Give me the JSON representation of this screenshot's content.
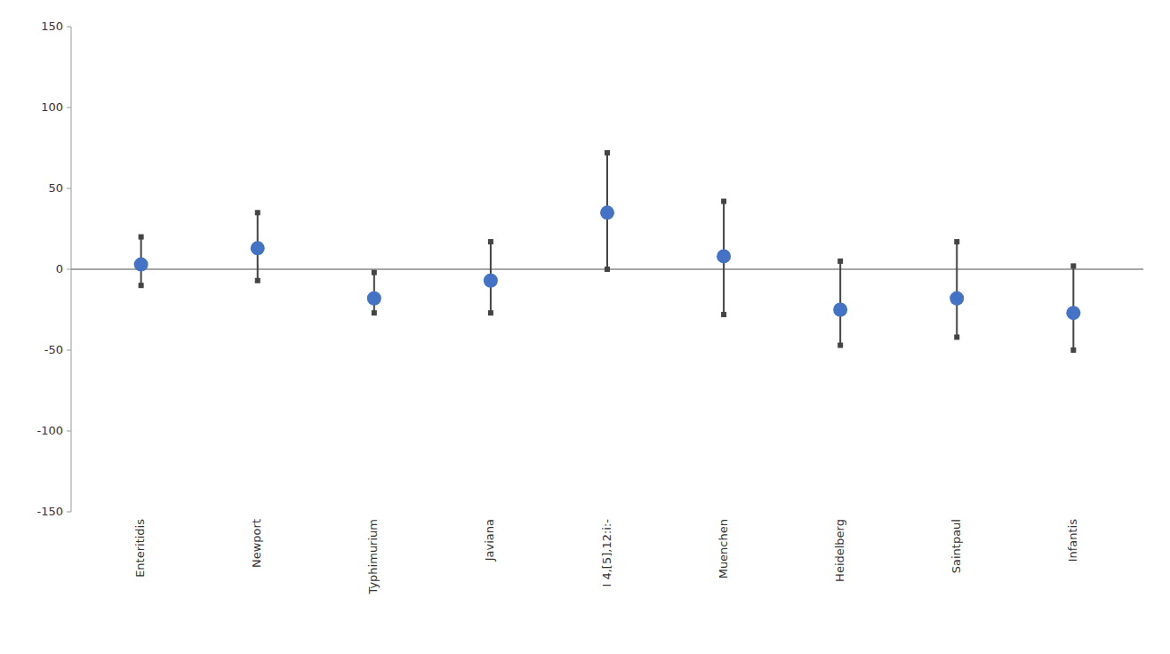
{
  "chart_data": {
    "type": "errorbar",
    "categories": [
      "Enteritidis",
      "Newport",
      "Typhimurium",
      "Javiana",
      "I 4,[5],12:i:-",
      "Muenchen",
      "Heidelberg",
      "Saintpaul",
      "Infantis"
    ],
    "values": [
      3,
      13,
      -18,
      -7,
      35,
      8,
      -25,
      -18,
      -27
    ],
    "upper": [
      20,
      35,
      -2,
      17,
      72,
      42,
      5,
      17,
      2
    ],
    "lower": [
      -10,
      -7,
      -27,
      -27,
      0,
      -28,
      -47,
      -42,
      -50
    ],
    "color": "#4472C4",
    "ylim": [
      -150,
      150
    ],
    "yticks": [
      -150,
      -100,
      -50,
      0,
      50,
      100,
      150
    ],
    "grid": false
  }
}
